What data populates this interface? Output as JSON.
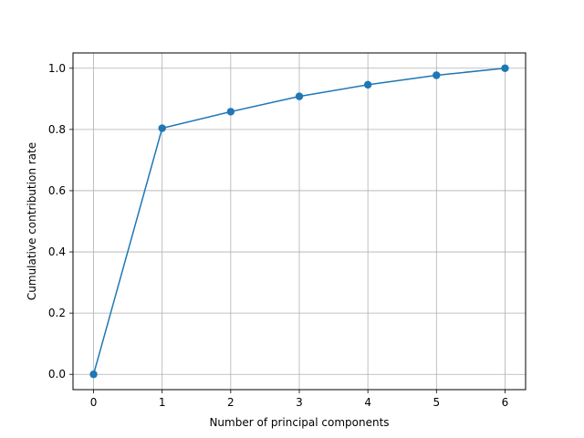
{
  "chart_data": {
    "type": "line",
    "xlabel": "Number of principal components",
    "ylabel": "Cumulative contribution rate",
    "x": [
      0,
      1,
      2,
      3,
      4,
      5,
      6
    ],
    "series": [
      {
        "values": [
          0.0,
          0.804,
          0.858,
          0.908,
          0.946,
          0.977,
          1.0
        ]
      }
    ],
    "xlim": [
      -0.3,
      6.3
    ],
    "ylim": [
      -0.05,
      1.05
    ],
    "xticks": [
      0,
      1,
      2,
      3,
      4,
      5,
      6
    ],
    "xtick_labels": [
      "0",
      "1",
      "2",
      "3",
      "4",
      "5",
      "6"
    ],
    "yticks": [
      0.0,
      0.2,
      0.4,
      0.6,
      0.8,
      1.0
    ],
    "ytick_labels": [
      "0.0",
      "0.2",
      "0.4",
      "0.6",
      "0.8",
      "1.0"
    ],
    "grid": true,
    "marker": "circle",
    "color": "#1f77b4",
    "grid_color": "#b0b0b0"
  }
}
